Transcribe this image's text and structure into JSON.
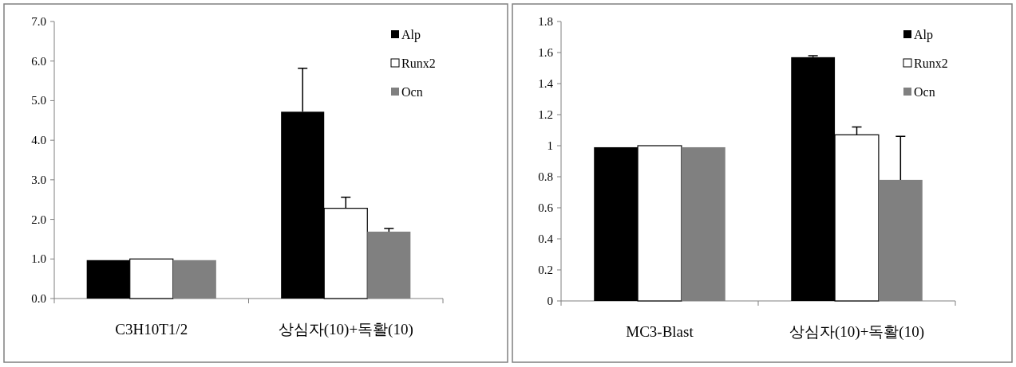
{
  "chart_data": [
    {
      "type": "bar",
      "categories": [
        "C3H10T1/2",
        "상심자(10)+독활(10)"
      ],
      "series": [
        {
          "name": "Alp",
          "color": "#000000",
          "values": [
            0.97,
            4.72
          ],
          "errors": [
            null,
            [
              4.72,
              5.82
            ]
          ]
        },
        {
          "name": "Runx2",
          "color": "#ffffff",
          "values": [
            1.0,
            2.28
          ],
          "errors": [
            null,
            [
              2.28,
              2.56
            ]
          ]
        },
        {
          "name": "Ocn",
          "color": "#808080",
          "values": [
            0.97,
            1.69
          ],
          "errors": [
            null,
            [
              1.69,
              1.77
            ]
          ]
        }
      ],
      "ylim": [
        0,
        7
      ],
      "yticks": [
        {
          "value": 0,
          "label": "0.0"
        },
        {
          "value": 1,
          "label": "1.0"
        },
        {
          "value": 2,
          "label": "2.0"
        },
        {
          "value": 3,
          "label": "3.0"
        },
        {
          "value": 4,
          "label": "4.0"
        },
        {
          "value": 5,
          "label": "5.0"
        },
        {
          "value": 6,
          "label": "6.0"
        },
        {
          "value": 7,
          "label": "7.0"
        }
      ],
      "legend": "top right"
    },
    {
      "type": "bar",
      "categories": [
        "MC3-Blast",
        "상심자(10)+독활(10)"
      ],
      "series": [
        {
          "name": "Alp",
          "color": "#000000",
          "values": [
            0.99,
            1.57
          ],
          "errors": [
            null,
            [
              1.57,
              1.58
            ]
          ]
        },
        {
          "name": "Runx2",
          "color": "#ffffff",
          "values": [
            1.0,
            1.07
          ],
          "errors": [
            null,
            [
              1.07,
              1.12
            ]
          ]
        },
        {
          "name": "Ocn",
          "color": "#808080",
          "values": [
            0.99,
            0.78
          ],
          "errors": [
            null,
            [
              0.78,
              1.06
            ]
          ]
        }
      ],
      "ylim": [
        0,
        1.8
      ],
      "yticks": [
        0,
        0.2,
        0.4,
        0.6,
        0.8,
        1,
        1.2,
        1.4,
        1.6,
        1.8
      ],
      "legend": "top right"
    }
  ]
}
